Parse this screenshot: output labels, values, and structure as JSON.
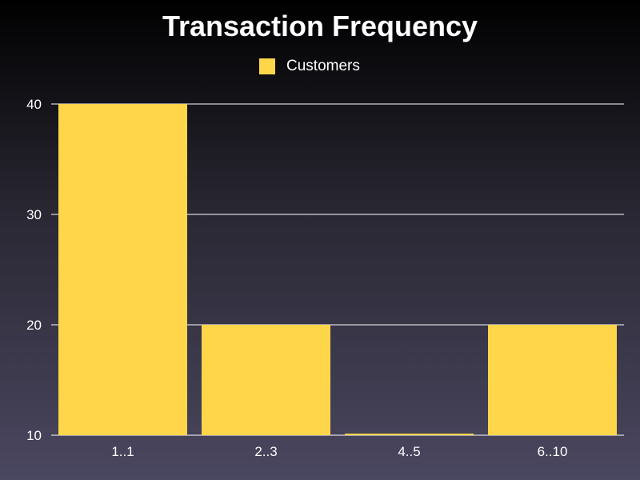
{
  "chart_data": {
    "type": "bar",
    "title": "Transaction Frequency",
    "categories": [
      "1..1",
      "2..3",
      "4..5",
      "6..10"
    ],
    "series": [
      {
        "name": "Customers",
        "values": [
          40,
          20,
          10,
          20
        ]
      }
    ],
    "ylim": [
      10,
      40
    ],
    "yticks": [
      10,
      20,
      30,
      40
    ],
    "xlabel": "",
    "ylabel": "",
    "grid": true,
    "legend_position": "top-center"
  },
  "colors": {
    "bar": "#ffd54a",
    "grid": "#ffffff",
    "text": "#ffffff"
  }
}
